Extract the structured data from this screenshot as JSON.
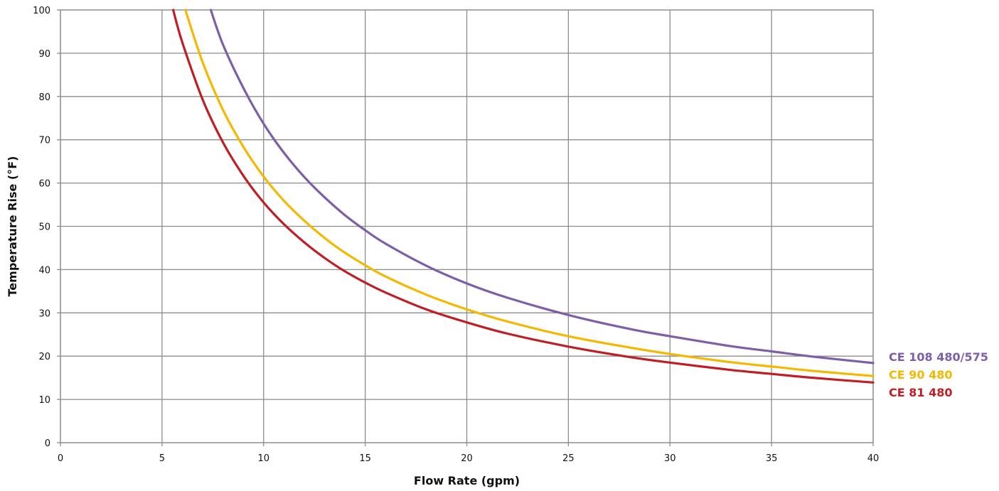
{
  "chart_data": {
    "type": "line",
    "title": "",
    "xlabel": "Flow Rate (gpm)",
    "ylabel": "Temperature Rise (°F)",
    "xlim": [
      0,
      40
    ],
    "ylim": [
      0,
      100
    ],
    "x_ticks": [
      "0",
      "5",
      "10",
      "15",
      "20",
      "25",
      "30",
      "35",
      "40"
    ],
    "y_ticks": [
      "0",
      "10",
      "20",
      "30",
      "40",
      "50",
      "60",
      "70",
      "80",
      "90",
      "100"
    ],
    "grid": true,
    "legend_placement": "right",
    "series": [
      {
        "name": "CE 108 480/575",
        "color": "#7d5ea8",
        "x": [
          7.4,
          8,
          9,
          10,
          11,
          12,
          13,
          14,
          15,
          16,
          18,
          20,
          22,
          25,
          28,
          30,
          33,
          35,
          37,
          40
        ],
        "y": [
          100,
          92,
          82,
          73.7,
          67,
          61.4,
          56.7,
          52.6,
          49.1,
          46,
          40.9,
          36.8,
          33.5,
          29.5,
          26.3,
          24.6,
          22.3,
          21.1,
          19.9,
          18.4
        ]
      },
      {
        "name": "CE 90 480",
        "color": "#f5b800",
        "x": [
          6.15,
          7,
          8,
          9,
          10,
          11,
          12,
          13,
          14,
          15,
          16,
          18,
          20,
          22,
          25,
          28,
          30,
          33,
          35,
          37,
          40
        ],
        "y": [
          100,
          87.9,
          76.9,
          68.4,
          61.5,
          55.9,
          51.3,
          47.3,
          43.9,
          41,
          38.4,
          34.2,
          30.8,
          28,
          24.6,
          22,
          20.5,
          18.6,
          17.6,
          16.6,
          15.4
        ]
      },
      {
        "name": "CE 81 480",
        "color": "#bf1e24",
        "x": [
          5.55,
          6,
          7,
          8,
          9,
          10,
          11,
          12,
          13,
          14,
          15,
          16,
          18,
          20,
          22,
          25,
          28,
          30,
          33,
          35,
          37,
          40
        ],
        "y": [
          100,
          92.5,
          79.3,
          69.4,
          61.7,
          55.5,
          50.5,
          46.3,
          42.7,
          39.6,
          37,
          34.7,
          30.8,
          27.8,
          25.2,
          22.2,
          19.8,
          18.5,
          16.8,
          15.9,
          15,
          13.9
        ]
      }
    ]
  }
}
